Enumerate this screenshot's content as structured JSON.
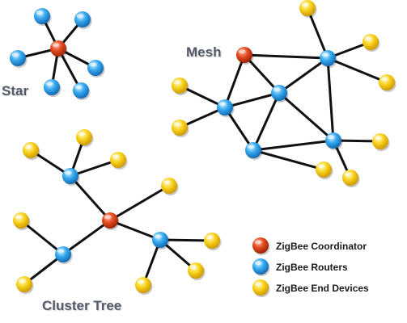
{
  "titles": {
    "star": "Star",
    "mesh": "Mesh",
    "cluster_tree": "Cluster Tree"
  },
  "legend": [
    {
      "type": "coordinator",
      "label": "ZigBee Coordinator"
    },
    {
      "type": "router",
      "label": "ZigBee Routers"
    },
    {
      "type": "end_device",
      "label": "ZigBee End Devices"
    }
  ],
  "colors": {
    "coordinator": "#d83a14",
    "router": "#2a9de8",
    "end_device": "#f6cf14",
    "edge": "#111111",
    "title": "#555b66"
  },
  "topologies": [
    {
      "name": "star",
      "nodes": [
        "coordinator",
        "router",
        "router",
        "router",
        "router",
        "router",
        "router"
      ],
      "links": [
        [
          0,
          1
        ],
        [
          0,
          2
        ],
        [
          0,
          3
        ],
        [
          0,
          4
        ],
        [
          0,
          5
        ],
        [
          0,
          6
        ]
      ]
    },
    {
      "name": "mesh",
      "nodes": [
        "coordinator",
        "router",
        "router",
        "router",
        "router",
        "router",
        "end_device",
        "end_device",
        "end_device",
        "end_device",
        "end_device",
        "end_device",
        "end_device",
        "end_device"
      ],
      "links": [
        [
          0,
          1
        ],
        [
          0,
          2
        ],
        [
          0,
          3
        ],
        [
          1,
          2
        ],
        [
          2,
          3
        ],
        [
          1,
          4
        ],
        [
          2,
          4
        ],
        [
          2,
          5
        ],
        [
          3,
          5
        ],
        [
          4,
          5
        ],
        [
          1,
          6
        ],
        [
          1,
          7
        ],
        [
          3,
          8
        ],
        [
          3,
          9
        ],
        [
          3,
          10
        ],
        [
          5,
          11
        ],
        [
          5,
          12
        ],
        [
          4,
          13
        ]
      ]
    },
    {
      "name": "cluster_tree",
      "nodes": [
        "coordinator",
        "router",
        "router",
        "router",
        "end_device",
        "end_device",
        "end_device",
        "end_device",
        "end_device",
        "end_device",
        "end_device",
        "end_device",
        "end_device"
      ],
      "links": [
        [
          0,
          1
        ],
        [
          0,
          2
        ],
        [
          0,
          3
        ],
        [
          0,
          4
        ],
        [
          1,
          5
        ],
        [
          1,
          6
        ],
        [
          1,
          7
        ],
        [
          2,
          8
        ],
        [
          2,
          9
        ],
        [
          3,
          10
        ],
        [
          3,
          11
        ],
        [
          3,
          12
        ]
      ]
    }
  ]
}
